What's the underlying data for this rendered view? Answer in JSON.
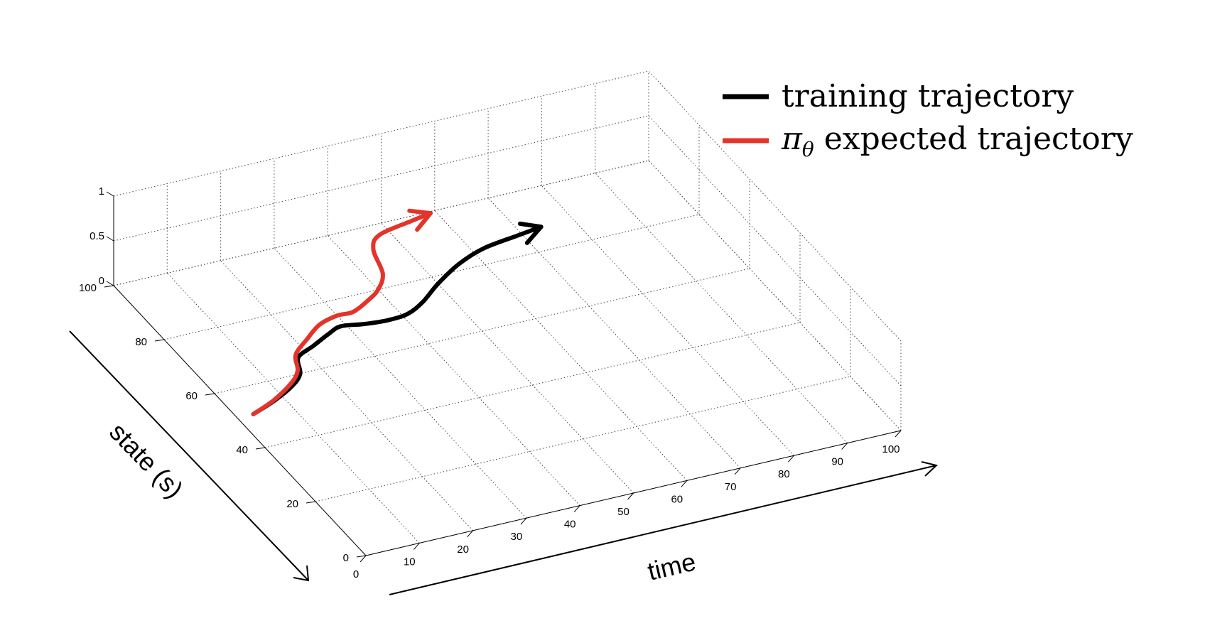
{
  "chart_data": {
    "type": "line",
    "projection": "3d",
    "xlabel": "time",
    "ylabel": "state (s)",
    "zlabel": "",
    "xlim": [
      0,
      100
    ],
    "ylim": [
      0,
      100
    ],
    "zlim": [
      0,
      1
    ],
    "x_ticks": [
      "0",
      "10",
      "20",
      "30",
      "40",
      "50",
      "60",
      "70",
      "80",
      "90",
      "100"
    ],
    "y_ticks": [
      "0",
      "20",
      "40",
      "60",
      "80",
      "100"
    ],
    "z_ticks": [
      "0",
      "0.5",
      "1"
    ],
    "grid": true,
    "legend_position": "top-right",
    "series": [
      {
        "name": "training trajectory",
        "color": "#000000",
        "arrow_end": true,
        "points": [
          [
            3,
            51
          ],
          [
            8,
            53.5
          ],
          [
            13,
            56.8
          ],
          [
            16,
            60
          ],
          [
            18,
            65
          ],
          [
            22,
            67.5
          ],
          [
            26,
            70
          ],
          [
            29,
            71.5
          ],
          [
            33,
            70.5
          ],
          [
            37,
            70
          ],
          [
            41,
            70.5
          ],
          [
            45,
            73
          ],
          [
            50,
            77.5
          ],
          [
            56,
            82
          ],
          [
            62,
            85
          ],
          [
            69,
            86.5
          ],
          [
            74,
            87.5
          ]
        ]
      },
      {
        "name": "expected trajectory",
        "name_symbol": "π",
        "name_subscript": "θ",
        "color": "#e3342b",
        "arrow_end": true,
        "points": [
          [
            3,
            51
          ],
          [
            8,
            53.7
          ],
          [
            13,
            57.5
          ],
          [
            16,
            61
          ],
          [
            18,
            66
          ],
          [
            22,
            70
          ],
          [
            26,
            73.5
          ],
          [
            30,
            75
          ],
          [
            33,
            75
          ],
          [
            37,
            77.5
          ],
          [
            40,
            80
          ],
          [
            43,
            84.5
          ],
          [
            45,
            92.5
          ],
          [
            48,
            96.5
          ],
          [
            55,
            98.5
          ],
          [
            59,
            99.5
          ]
        ]
      }
    ]
  }
}
